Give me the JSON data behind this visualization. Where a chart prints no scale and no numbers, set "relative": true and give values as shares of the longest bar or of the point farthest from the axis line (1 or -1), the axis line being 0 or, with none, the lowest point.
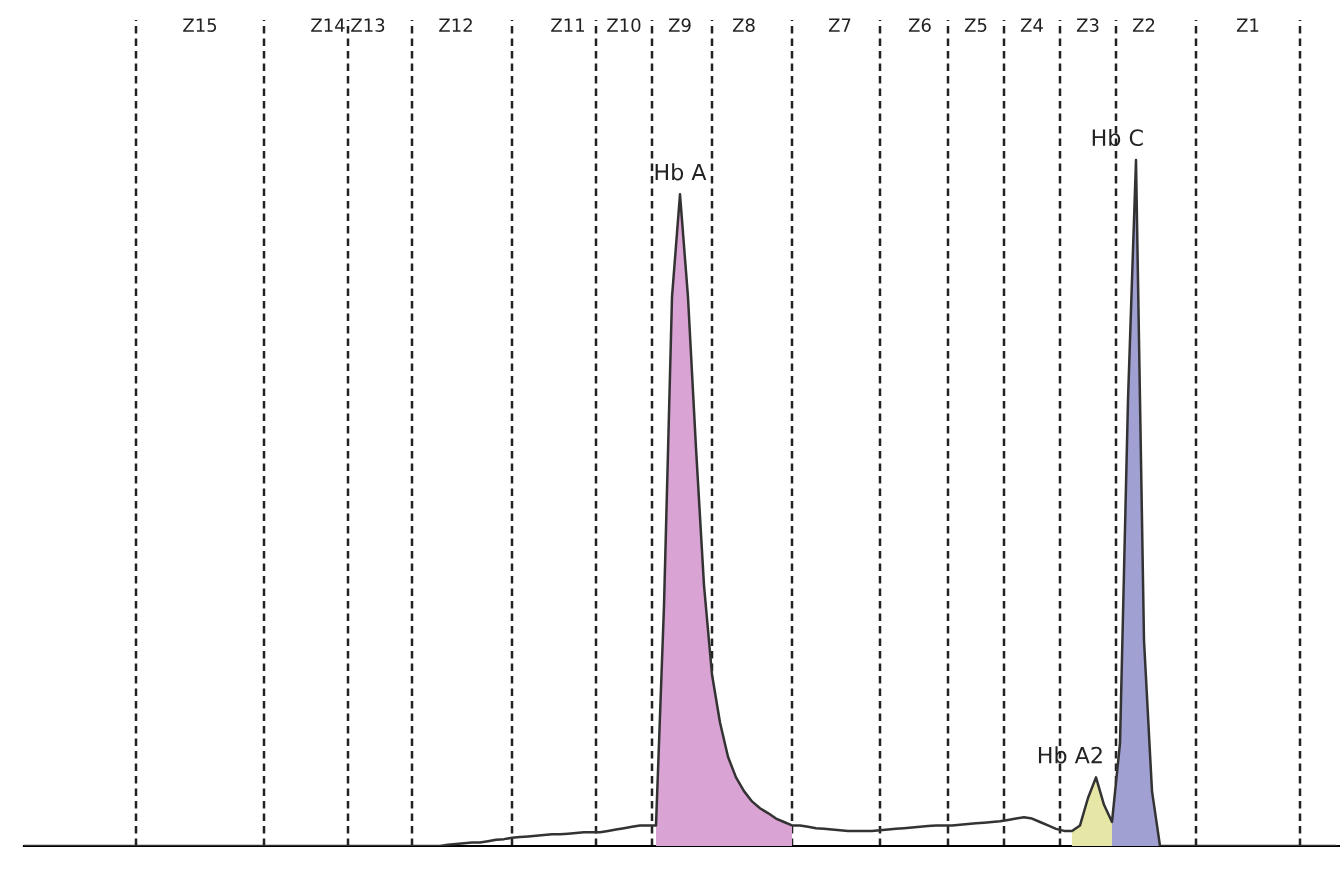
{
  "chart_data": {
    "type": "area",
    "relative": true,
    "tick_labels": "x",
    "categories": [
      null,
      null,
      null,
      null,
      null,
      null,
      null,
      null,
      null,
      null,
      null,
      null,
      null,
      null,
      null,
      null,
      null,
      null,
      null,
      null,
      null,
      null,
      "Z15",
      null,
      null,
      null,
      null,
      null,
      null,
      null,
      null,
      null,
      null,
      null,
      null,
      null,
      null,
      null,
      "Z14",
      null,
      null,
      null,
      null,
      "Z13",
      null,
      null,
      null,
      null,
      null,
      null,
      null,
      null,
      null,
      null,
      "Z12",
      null,
      null,
      null,
      null,
      null,
      null,
      null,
      null,
      null,
      null,
      null,
      null,
      null,
      "Z11",
      null,
      null,
      null,
      null,
      null,
      null,
      "Z10",
      null,
      null,
      null,
      null,
      null,
      null,
      "Z9",
      null,
      null,
      null,
      null,
      null,
      null,
      null,
      "Z8",
      null,
      null,
      null,
      null,
      null,
      null,
      null,
      null,
      null,
      null,
      null,
      "Z7",
      null,
      null,
      null,
      null,
      null,
      null,
      null,
      null,
      null,
      "Z6",
      null,
      null,
      null,
      null,
      null,
      null,
      "Z5",
      null,
      null,
      null,
      null,
      null,
      null,
      "Z4",
      null,
      null,
      null,
      null,
      null,
      null,
      "Z3",
      null,
      null,
      null,
      null,
      null,
      null,
      "Z2",
      null,
      null,
      null,
      null,
      null,
      null,
      null,
      null,
      null,
      null,
      null,
      null,
      "Z1",
      null,
      null,
      null,
      null,
      null,
      null,
      null,
      null,
      null,
      null,
      null
    ],
    "series": [
      {
        "type": "line",
        "color": "#333333",
        "values": [
          0,
          0,
          0,
          0,
          0,
          0,
          0,
          0,
          0,
          0,
          0,
          0,
          0,
          0,
          0,
          0,
          0,
          0,
          0,
          0,
          0,
          0,
          0,
          0,
          0,
          0,
          0,
          0,
          0,
          0,
          0,
          0,
          0,
          0,
          0,
          0,
          0,
          0,
          0,
          0,
          0,
          0,
          0,
          0,
          0,
          0,
          0,
          0,
          0,
          0,
          0,
          0,
          0,
          0.002,
          0.003,
          0.004,
          0.005,
          0.005,
          0.007,
          0.009,
          0.01,
          0.012,
          0.013,
          0.014,
          0.015,
          0.016,
          0.017,
          0.017,
          0.018,
          0.019,
          0.02,
          0.02,
          0.02,
          0.022,
          0.024,
          0.026,
          0.028,
          0.03,
          0.03,
          0.03,
          0.35,
          0.8,
          0.95,
          0.8,
          0.58,
          0.38,
          0.25,
          0.18,
          0.13,
          0.1,
          0.08,
          0.065,
          0.055,
          0.048,
          0.04,
          0.035,
          0.03,
          0.03,
          0.028,
          0.026,
          0.025,
          0.024,
          0.023,
          0.022,
          0.022,
          0.022,
          0.022,
          0.023,
          0.024,
          0.025,
          0.026,
          0.027,
          0.028,
          0.029,
          0.03,
          0.03,
          0.03,
          0.031,
          0.032,
          0.033,
          0.034,
          0.035,
          0.036,
          0.038,
          0.04,
          0.042,
          0.04,
          0.035,
          0.03,
          0.025,
          0.022,
          0.022,
          0.03,
          0.07,
          0.1,
          0.06,
          0.035,
          0.15,
          0.65,
          1.0,
          0.3,
          0.08,
          0,
          0,
          0,
          0,
          0,
          0,
          0,
          0,
          0,
          0,
          0,
          0,
          0,
          0,
          0,
          0,
          0,
          0,
          0,
          0,
          0,
          0,
          0
        ]
      },
      {
        "name": "Hb A",
        "color": "#d9a3d3",
        "values": [
          null,
          null,
          null,
          null,
          null,
          null,
          null,
          null,
          null,
          null,
          null,
          null,
          null,
          null,
          null,
          null,
          null,
          null,
          null,
          null,
          null,
          null,
          null,
          null,
          null,
          null,
          null,
          null,
          null,
          null,
          null,
          null,
          null,
          null,
          null,
          null,
          null,
          null,
          null,
          null,
          null,
          null,
          null,
          null,
          null,
          null,
          null,
          null,
          null,
          null,
          null,
          null,
          null,
          null,
          null,
          null,
          null,
          null,
          null,
          null,
          null,
          null,
          null,
          null,
          null,
          null,
          null,
          null,
          null,
          null,
          null,
          null,
          null,
          null,
          null,
          null,
          null,
          null,
          null,
          0.03,
          0.35,
          0.8,
          0.95,
          0.8,
          0.58,
          0.38,
          0.25,
          0.18,
          0.13,
          0.1,
          0.08,
          0.065,
          0.055,
          0.048,
          0.04,
          0.035,
          0.03,
          null,
          null,
          null,
          null,
          null,
          null,
          null,
          null,
          null,
          null,
          null,
          null,
          null,
          null,
          null,
          null,
          null,
          null,
          null,
          null,
          null,
          null,
          null,
          null,
          null,
          null,
          null,
          null,
          null,
          null,
          null,
          null,
          null,
          null,
          null,
          null,
          null,
          null,
          null,
          null,
          null,
          null,
          null,
          null,
          null,
          null,
          null,
          null,
          null,
          null,
          null,
          null,
          null,
          null,
          null,
          null,
          null,
          null,
          null,
          null,
          null,
          null,
          null,
          null,
          null,
          null,
          null,
          null
        ]
      },
      {
        "name": "Hb A2",
        "color": "#e6e6a6",
        "values": [
          null,
          null,
          null,
          null,
          null,
          null,
          null,
          null,
          null,
          null,
          null,
          null,
          null,
          null,
          null,
          null,
          null,
          null,
          null,
          null,
          null,
          null,
          null,
          null,
          null,
          null,
          null,
          null,
          null,
          null,
          null,
          null,
          null,
          null,
          null,
          null,
          null,
          null,
          null,
          null,
          null,
          null,
          null,
          null,
          null,
          null,
          null,
          null,
          null,
          null,
          null,
          null,
          null,
          null,
          null,
          null,
          null,
          null,
          null,
          null,
          null,
          null,
          null,
          null,
          null,
          null,
          null,
          null,
          null,
          null,
          null,
          null,
          null,
          null,
          null,
          null,
          null,
          null,
          null,
          null,
          null,
          null,
          null,
          null,
          null,
          null,
          null,
          null,
          null,
          null,
          null,
          null,
          null,
          null,
          null,
          null,
          null,
          null,
          null,
          null,
          null,
          null,
          null,
          null,
          null,
          null,
          null,
          null,
          null,
          null,
          null,
          null,
          null,
          null,
          null,
          null,
          null,
          null,
          null,
          null,
          null,
          null,
          null,
          null,
          null,
          null,
          null,
          null,
          null,
          null,
          null,
          0.022,
          0.03,
          0.07,
          0.1,
          0.06,
          0.035,
          null,
          null,
          null,
          null,
          null,
          null,
          null,
          null,
          null,
          null,
          null,
          null,
          null,
          null,
          null,
          null,
          null,
          null,
          null,
          null,
          null,
          null,
          null,
          null,
          null,
          null,
          null,
          null
        ]
      },
      {
        "name": "Hb C",
        "color": "#a0a0d2",
        "values": [
          null,
          null,
          null,
          null,
          null,
          null,
          null,
          null,
          null,
          null,
          null,
          null,
          null,
          null,
          null,
          null,
          null,
          null,
          null,
          null,
          null,
          null,
          null,
          null,
          null,
          null,
          null,
          null,
          null,
          null,
          null,
          null,
          null,
          null,
          null,
          null,
          null,
          null,
          null,
          null,
          null,
          null,
          null,
          null,
          null,
          null,
          null,
          null,
          null,
          null,
          null,
          null,
          null,
          null,
          null,
          null,
          null,
          null,
          null,
          null,
          null,
          null,
          null,
          null,
          null,
          null,
          null,
          null,
          null,
          null,
          null,
          null,
          null,
          null,
          null,
          null,
          null,
          null,
          null,
          null,
          null,
          null,
          null,
          null,
          null,
          null,
          null,
          null,
          null,
          null,
          null,
          null,
          null,
          null,
          null,
          null,
          null,
          null,
          null,
          null,
          null,
          null,
          null,
          null,
          null,
          null,
          null,
          null,
          null,
          null,
          null,
          null,
          null,
          null,
          null,
          null,
          null,
          null,
          null,
          null,
          null,
          null,
          null,
          null,
          null,
          null,
          null,
          null,
          null,
          null,
          null,
          null,
          null,
          null,
          null,
          null,
          0.035,
          0.15,
          0.65,
          1.0,
          0.3,
          0.08,
          0,
          null,
          null,
          null,
          null,
          null,
          null,
          null,
          null,
          null,
          null,
          null,
          null,
          null,
          null,
          null,
          null,
          null,
          null,
          null,
          null,
          null,
          null
        ]
      }
    ]
  }
}
